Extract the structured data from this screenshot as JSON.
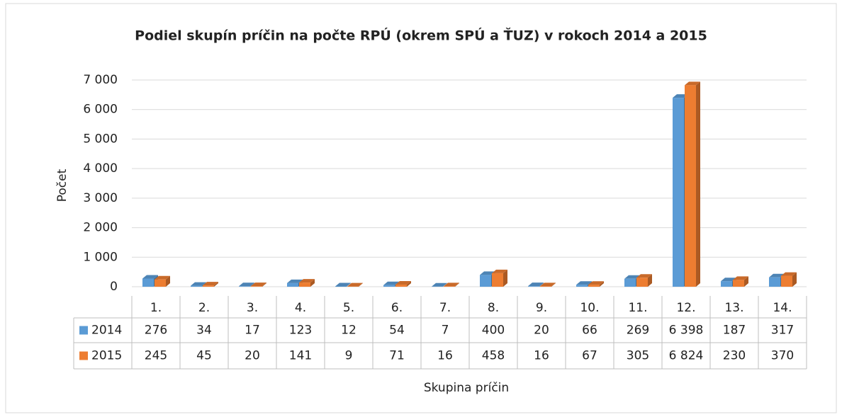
{
  "chart_data": {
    "type": "bar3d",
    "title": "Podiel skupín príčin na počte RPÚ (okrem SPÚ a ŤUZ) v rokoch 2014 a 2015",
    "xlabel": "Skupina príčin",
    "ylabel": "Počet",
    "categories": [
      "1.",
      "2.",
      "3.",
      "4.",
      "5.",
      "6.",
      "7.",
      "8.",
      "9.",
      "10.",
      "11.",
      "12.",
      "13.",
      "14."
    ],
    "series": [
      {
        "name": "2014",
        "color": "#5b9bd5",
        "values": [
          276,
          34,
          17,
          123,
          12,
          54,
          7,
          400,
          20,
          66,
          269,
          6398,
          187,
          317
        ],
        "value_labels": [
          "276",
          "34",
          "17",
          "123",
          "12",
          "54",
          "7",
          "400",
          "20",
          "66",
          "269",
          "6 398",
          "187",
          "317"
        ]
      },
      {
        "name": "2015",
        "color": "#ed7d31",
        "values": [
          245,
          45,
          20,
          141,
          9,
          71,
          16,
          458,
          16,
          67,
          305,
          6824,
          230,
          370
        ],
        "value_labels": [
          "245",
          "45",
          "20",
          "141",
          "9",
          "71",
          "16",
          "458",
          "16",
          "67",
          "305",
          "6 824",
          "230",
          "370"
        ]
      }
    ],
    "ylim": [
      0,
      7000
    ],
    "yticks": [
      0,
      {
        "value": 1000,
        "label": "1 000"
      },
      {
        "value": 2000,
        "label": "2 000"
      },
      {
        "value": 3000,
        "label": "3 000"
      },
      {
        "value": 4000,
        "label": "4 000"
      },
      {
        "value": 5000,
        "label": "5 000"
      },
      {
        "value": 6000,
        "label": "6 000"
      },
      {
        "value": 7000,
        "label": "7 000"
      }
    ],
    "grid": true
  }
}
